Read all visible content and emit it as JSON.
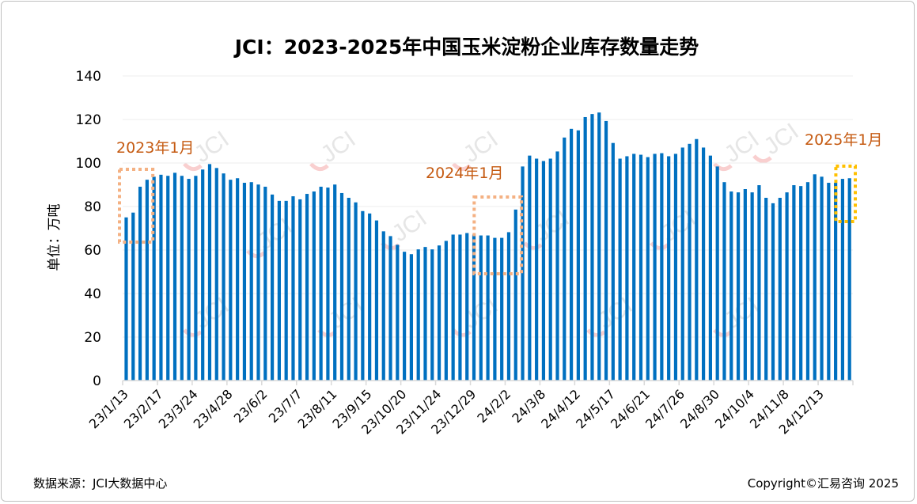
{
  "chart_data": {
    "type": "bar",
    "title": "JCI：2023-2025年中国玉米淀粉企业库存数量走势",
    "ylabel": "单位：万吨",
    "xlabel": "",
    "ylim": [
      0,
      140
    ],
    "yticks": [
      0,
      20,
      40,
      60,
      80,
      100,
      120,
      140
    ],
    "grid": true,
    "bar_color": "#0070C0",
    "x_tick_labels": [
      "23/1/13",
      "23/2/17",
      "23/3/24",
      "23/4/28",
      "23/6/2",
      "23/7/7",
      "23/8/11",
      "23/9/15",
      "23/10/20",
      "23/11/24",
      "23/12/29",
      "24/2/2",
      "24/3/8",
      "24/4/12",
      "24/5/17",
      "24/6/21",
      "24/7/26",
      "24/8/30",
      "24/10/4",
      "24/11/8",
      "24/12/13"
    ],
    "x_tick_every": 5,
    "values": [
      75.0,
      77.2,
      89.1,
      92.3,
      93.7,
      94.6,
      94.1,
      95.5,
      94.1,
      92.7,
      94.1,
      97.0,
      99.5,
      97.7,
      95.2,
      92.3,
      93.0,
      90.9,
      91.2,
      90.1,
      89.1,
      85.5,
      82.6,
      82.6,
      84.7,
      83.3,
      85.8,
      86.9,
      89.1,
      88.7,
      90.1,
      86.2,
      84.0,
      81.9,
      77.9,
      76.8,
      73.6,
      68.6,
      66.4,
      62.4,
      59.2,
      58.1,
      60.3,
      61.4,
      60.3,
      62.1,
      64.2,
      67.1,
      67.1,
      67.8,
      67.1,
      66.7,
      66.7,
      65.6,
      65.6,
      68.2,
      78.6,
      98.4,
      103.4,
      102.0,
      100.9,
      102.0,
      105.3,
      111.7,
      115.7,
      115.0,
      121.1,
      122.5,
      123.2,
      119.3,
      109.2,
      102.0,
      103.1,
      104.2,
      103.8,
      102.7,
      104.2,
      104.5,
      103.1,
      104.2,
      107.1,
      108.8,
      111.0,
      107.1,
      103.4,
      98.4,
      91.2,
      86.9,
      86.5,
      88.0,
      86.5,
      89.8,
      84.0,
      81.5,
      84.0,
      86.5,
      89.8,
      89.4,
      91.2,
      94.8,
      93.7,
      90.9,
      90.9,
      92.7,
      93.0
    ],
    "annotations": [
      {
        "text": "2023年1月",
        "color": "#C55A11",
        "box_color": "#F4B183",
        "bar_range": [
          0,
          3
        ]
      },
      {
        "text": "2024年1月",
        "color": "#C55A11",
        "box_color": "#F4B183",
        "bar_range": [
          51,
          56
        ]
      },
      {
        "text": "2025年1月",
        "color": "#C55A11",
        "box_color": "#FFC000",
        "bar_range": [
          103,
          104
        ]
      }
    ]
  },
  "watermark": "JCI",
  "footer": {
    "source": "数据来源：JCI大数据中心",
    "copyright": "Copyright©汇易咨询 2025"
  }
}
